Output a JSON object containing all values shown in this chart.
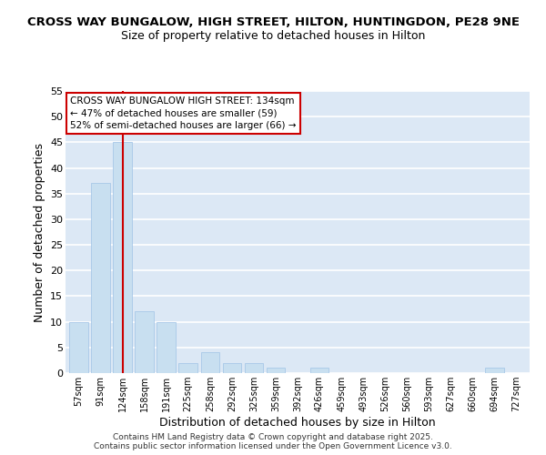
{
  "title": "CROSS WAY BUNGALOW, HIGH STREET, HILTON, HUNTINGDON, PE28 9NE",
  "subtitle": "Size of property relative to detached houses in Hilton",
  "xlabel": "Distribution of detached houses by size in Hilton",
  "ylabel": "Number of detached properties",
  "bar_color": "#c8dff0",
  "bar_edge_color": "#a8c8e8",
  "background_color": "#dce8f5",
  "grid_color": "#ffffff",
  "categories": [
    "57sqm",
    "91sqm",
    "124sqm",
    "158sqm",
    "191sqm",
    "225sqm",
    "258sqm",
    "292sqm",
    "325sqm",
    "359sqm",
    "392sqm",
    "426sqm",
    "459sqm",
    "493sqm",
    "526sqm",
    "560sqm",
    "593sqm",
    "627sqm",
    "660sqm",
    "694sqm",
    "727sqm"
  ],
  "values": [
    10,
    37,
    45,
    12,
    10,
    2,
    4,
    2,
    2,
    1,
    0,
    1,
    0,
    0,
    0,
    0,
    0,
    0,
    0,
    1,
    0
  ],
  "ylim": [
    0,
    55
  ],
  "yticks": [
    0,
    5,
    10,
    15,
    20,
    25,
    30,
    35,
    40,
    45,
    50,
    55
  ],
  "vline_x": 2,
  "vline_color": "#cc0000",
  "annotation_text": "CROSS WAY BUNGALOW HIGH STREET: 134sqm\n← 47% of detached houses are smaller (59)\n52% of semi-detached houses are larger (66) →",
  "footer1": "Contains HM Land Registry data © Crown copyright and database right 2025.",
  "footer2": "Contains public sector information licensed under the Open Government Licence v3.0."
}
